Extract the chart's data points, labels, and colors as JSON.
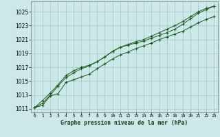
{
  "xlabel": "Graphe pression niveau de la mer (hPa)",
  "xlim": [
    -0.5,
    23.5
  ],
  "ylim": [
    1010.5,
    1026.5
  ],
  "yticks": [
    1011,
    1013,
    1015,
    1017,
    1019,
    1021,
    1023,
    1025
  ],
  "xticks": [
    0,
    1,
    2,
    3,
    4,
    5,
    6,
    7,
    8,
    9,
    10,
    11,
    12,
    13,
    14,
    15,
    16,
    17,
    18,
    19,
    20,
    21,
    22,
    23
  ],
  "bg_color": "#cce8e8",
  "grid_color": "#aacccc",
  "line_color1": "#1a5c1a",
  "line_color2": "#1a5c1a",
  "line_color3": "#1a5c1a",
  "series1": [
    1011.2,
    1011.5,
    1012.9,
    1013.2,
    1014.8,
    1015.2,
    1015.6,
    1016.0,
    1016.8,
    1017.5,
    1018.2,
    1018.8,
    1019.2,
    1019.7,
    1020.1,
    1020.5,
    1021.0,
    1021.4,
    1021.8,
    1022.2,
    1022.8,
    1023.4,
    1023.9,
    1024.3
  ],
  "series2": [
    1011.2,
    1012.2,
    1013.3,
    1014.5,
    1015.8,
    1016.5,
    1017.0,
    1017.3,
    1017.8,
    1018.5,
    1019.3,
    1019.9,
    1020.2,
    1020.5,
    1020.8,
    1021.2,
    1021.6,
    1022.0,
    1022.5,
    1023.2,
    1024.0,
    1024.8,
    1025.3,
    1025.8
  ],
  "series3": [
    1011.2,
    1011.8,
    1013.0,
    1014.3,
    1015.5,
    1016.2,
    1016.8,
    1017.2,
    1017.8,
    1018.5,
    1019.3,
    1019.9,
    1020.3,
    1020.7,
    1021.0,
    1021.5,
    1022.0,
    1022.5,
    1023.0,
    1023.6,
    1024.3,
    1025.0,
    1025.5,
    1025.8
  ]
}
